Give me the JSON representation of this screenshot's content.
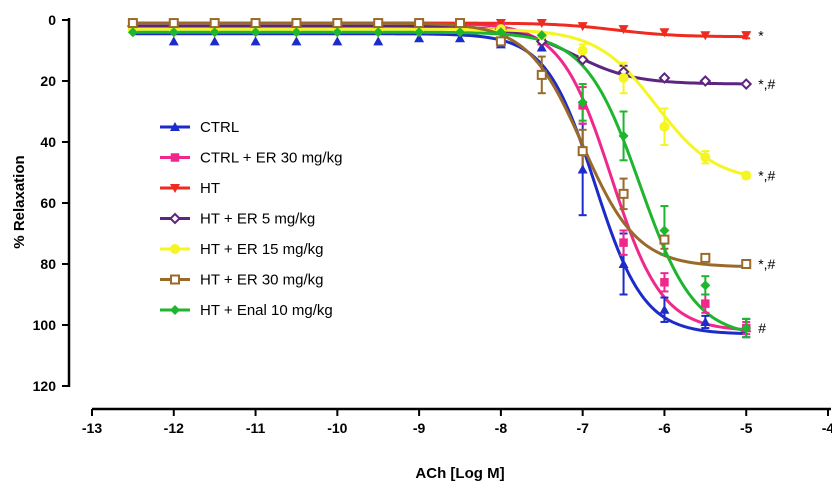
{
  "chart_data": {
    "type": "line",
    "title": "",
    "xlabel": "ACh [Log M]",
    "ylabel": "% Relaxation",
    "xlim": [
      -13,
      -4
    ],
    "ylim": [
      0,
      120
    ],
    "y_inverted": true,
    "x_ticks": [
      -13,
      -12,
      -11,
      -10,
      -9,
      -8,
      -7,
      -6,
      -5,
      -4
    ],
    "y_ticks": [
      0,
      20,
      40,
      60,
      80,
      100,
      120
    ],
    "x_tick_labels": [
      "-13",
      "-12",
      "-11",
      "-10",
      "-9",
      "-8",
      "-7",
      "-6",
      "-5",
      "-4"
    ],
    "y_tick_labels": [
      "0",
      "20",
      "40",
      "60",
      "80",
      "100",
      "120"
    ],
    "grid": false,
    "legend_position": "left-center",
    "x": [
      -12.5,
      -12,
      -11.5,
      -11,
      -10.5,
      -10,
      -9.5,
      -9,
      -8.5,
      -8,
      -7.5,
      -7,
      -6.5,
      -6,
      -5.5,
      -5
    ],
    "series": [
      {
        "name": "CTRL",
        "color": "#1c2bc9",
        "marker": "triangle-up",
        "values": [
          2,
          7,
          7,
          7,
          7,
          7,
          7,
          6,
          6,
          8,
          9,
          49,
          80,
          95,
          99,
          101
        ],
        "errors": [
          0,
          0,
          0,
          0,
          0,
          0,
          0,
          0,
          0,
          0,
          0,
          15,
          10,
          4,
          2,
          3
        ],
        "fit": {
          "bottom": 4.5,
          "top": 103,
          "ec50": -6.85,
          "hill": 1.45
        }
      },
      {
        "name": "CTRL + ER 30 mg/kg",
        "color": "#f0288c",
        "marker": "square",
        "values": [
          1,
          1,
          1,
          1,
          1,
          1,
          1,
          1,
          1,
          2,
          7,
          28,
          73,
          86,
          93,
          101
        ],
        "errors": [
          0,
          0,
          0,
          0,
          0,
          0,
          0,
          0,
          0,
          0,
          0,
          6,
          4,
          3,
          3,
          2
        ],
        "fit": {
          "bottom": 1,
          "top": 102,
          "ec50": -6.65,
          "hill": 1.4
        }
      },
      {
        "name": "HT",
        "color": "#ef2a1e",
        "marker": "triangle-down",
        "values": [
          1,
          1,
          1,
          1,
          1,
          1,
          1,
          1,
          1,
          1,
          1,
          2,
          3,
          4,
          5,
          5
        ],
        "errors": [
          0,
          0,
          0,
          0,
          0,
          0,
          0,
          0,
          0,
          0,
          0,
          0,
          0,
          0,
          0,
          1
        ],
        "fit": {
          "bottom": 1,
          "top": 5.5,
          "ec50": -6.6,
          "hill": 1.2
        }
      },
      {
        "name": "HT + ER 5 mg/kg",
        "color": "#5d2580",
        "marker": "diamond-open",
        "values": [
          2,
          2,
          2,
          2,
          2,
          2,
          2,
          2,
          2,
          3,
          7,
          13,
          17,
          19,
          20,
          21
        ],
        "errors": [
          0,
          0,
          0,
          0,
          0,
          0,
          0,
          0,
          0,
          0,
          0,
          0,
          2,
          0,
          0,
          0
        ],
        "fit": {
          "bottom": 2,
          "top": 21,
          "ec50": -7.1,
          "hill": 1.2
        }
      },
      {
        "name": "HT + ER 15 mg/kg",
        "color": "#f5f523",
        "marker": "circle",
        "values": [
          3,
          3,
          3,
          3,
          3,
          3,
          3,
          3,
          3,
          3,
          5,
          10,
          19,
          35,
          45,
          51
        ],
        "errors": [
          0,
          0,
          0,
          0,
          0,
          0,
          0,
          0,
          0,
          0,
          0,
          2,
          5,
          6,
          2,
          1
        ],
        "fit": {
          "bottom": 3,
          "top": 53,
          "ec50": -6.1,
          "hill": 1.2
        }
      },
      {
        "name": "HT + ER 30 mg/kg",
        "color": "#9a6a2b",
        "marker": "square-open",
        "values": [
          1,
          1,
          1,
          1,
          1,
          1,
          1,
          1,
          1,
          7,
          18,
          43,
          57,
          72,
          78,
          80
        ],
        "errors": [
          0,
          0,
          0,
          0,
          0,
          0,
          0,
          0,
          0,
          0,
          6,
          7,
          5,
          3,
          1,
          1
        ],
        "fit": {
          "bottom": 1,
          "top": 81,
          "ec50": -7.0,
          "hill": 1.3
        }
      },
      {
        "name": "HT + Enal 10 mg/kg",
        "color": "#1fb52f",
        "marker": "diamond",
        "values": [
          4,
          4,
          4,
          4,
          4,
          4,
          4,
          4,
          4,
          4,
          5,
          27,
          38,
          69,
          87,
          101
        ],
        "errors": [
          0,
          0,
          0,
          0,
          0,
          0,
          0,
          0,
          0,
          0,
          0,
          6,
          8,
          8,
          3,
          3
        ],
        "fit": {
          "bottom": 4,
          "top": 104,
          "ec50": -6.3,
          "hill": 1.3
        }
      }
    ],
    "annotations": [
      {
        "text": "*",
        "series": "HT"
      },
      {
        "text": "*,#",
        "series": "HT + ER 5 mg/kg"
      },
      {
        "text": "*,#",
        "series": "HT + ER 15 mg/kg"
      },
      {
        "text": "*,#",
        "series": "HT + ER 30 mg/kg"
      },
      {
        "text": "#",
        "series": "CTRL + ER 30 mg/kg"
      }
    ]
  }
}
